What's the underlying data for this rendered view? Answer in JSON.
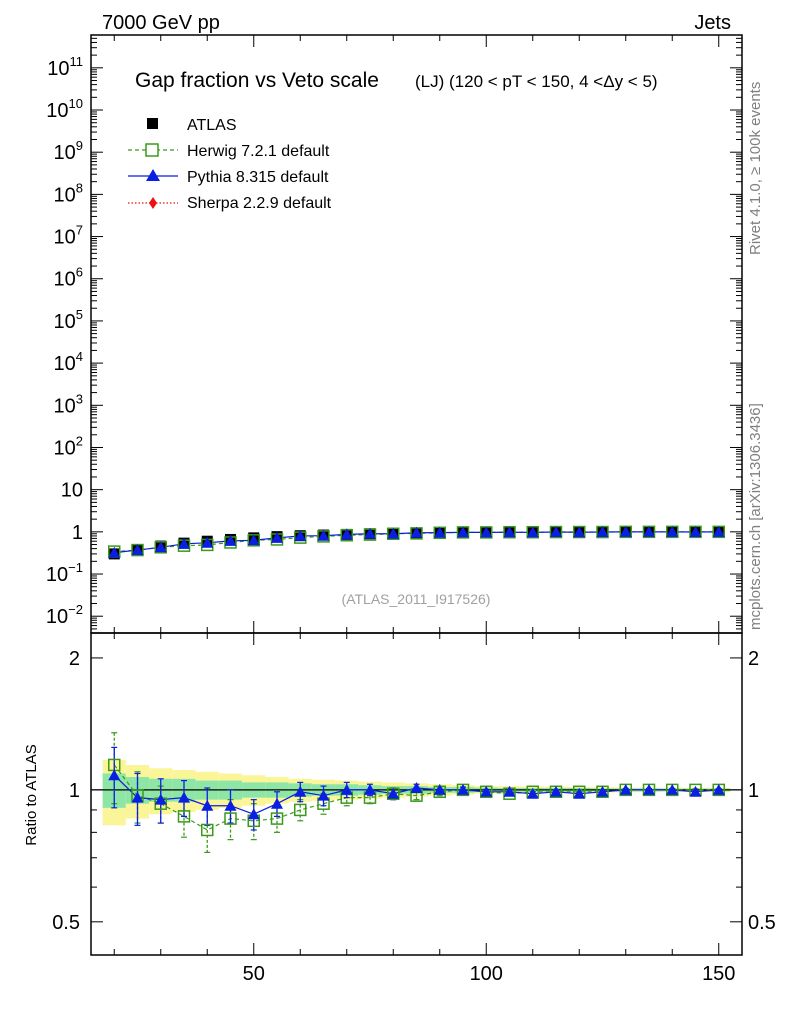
{
  "header": {
    "left": "7000 GeV pp",
    "right": "Jets"
  },
  "side": {
    "rivet": "Rivet 4.1.0, ≥ 100k events",
    "mcplots": "mcplots.cern.ch [arXiv:1306.3436]"
  },
  "colors": {
    "atlas": "#000000",
    "herwig": "#3a9a1a",
    "pythia": "#0b1fe0",
    "sherpa": "#ee1111",
    "band_inner": "#8ee6a6",
    "band_outer": "#fbf59a"
  },
  "chart_data": [
    {
      "type": "scatter",
      "title": "Gap fraction vs Veto scale",
      "subtitle": "(LJ) (120 < pT < 150, 4 <Δy < 5)",
      "ylabel": "",
      "yscale": "log",
      "ylim": [
        0.004,
        600000000000
      ],
      "xlim": [
        15,
        155
      ],
      "yticks": [
        {
          "value": 0.01,
          "base": "10",
          "exp": "−2"
        },
        {
          "value": 0.1,
          "base": "10",
          "exp": "−1"
        },
        {
          "value": 1,
          "base": "1",
          "exp": ""
        },
        {
          "value": 10,
          "base": "10",
          "exp": ""
        },
        {
          "value": 100.0,
          "base": "10",
          "exp": "2"
        },
        {
          "value": 1000.0,
          "base": "10",
          "exp": "3"
        },
        {
          "value": 10000.0,
          "base": "10",
          "exp": "4"
        },
        {
          "value": 100000.0,
          "base": "10",
          "exp": "5"
        },
        {
          "value": 1000000.0,
          "base": "10",
          "exp": "6"
        },
        {
          "value": 10000000.0,
          "base": "10",
          "exp": "7"
        },
        {
          "value": 100000000.0,
          "base": "10",
          "exp": "8"
        },
        {
          "value": 1000000000.0,
          "base": "10",
          "exp": "9"
        },
        {
          "value": 10000000000.0,
          "base": "10",
          "exp": "10"
        },
        {
          "value": 100000000000.0,
          "base": "10",
          "exp": "11"
        }
      ],
      "x": [
        20,
        25,
        30,
        35,
        40,
        45,
        50,
        55,
        60,
        65,
        70,
        75,
        80,
        85,
        90,
        95,
        100,
        105,
        110,
        115,
        120,
        125,
        130,
        135,
        140,
        145,
        150
      ],
      "series": [
        {
          "name": "ATLAS",
          "marker": "square-filled",
          "values": [
            0.3,
            0.38,
            0.46,
            0.54,
            0.6,
            0.66,
            0.72,
            0.77,
            0.81,
            0.84,
            0.87,
            0.9,
            0.92,
            0.94,
            0.96,
            0.97,
            0.98,
            0.99,
            0.99,
            1.0,
            1.0,
            1.0,
            1.0,
            1.0,
            1.0,
            1.0,
            1.0
          ]
        },
        {
          "name": "Herwig 7.2.1 default",
          "marker": "square-open",
          "values": [
            0.34,
            0.37,
            0.43,
            0.47,
            0.49,
            0.56,
            0.63,
            0.66,
            0.73,
            0.78,
            0.83,
            0.86,
            0.9,
            0.92,
            0.95,
            0.97,
            0.97,
            0.98,
            0.98,
            0.99,
            0.99,
            0.99,
            1.0,
            1.0,
            1.0,
            1.0,
            1.0
          ]
        },
        {
          "name": "Pythia 8.315 default",
          "marker": "triangle",
          "values": [
            0.32,
            0.37,
            0.43,
            0.52,
            0.55,
            0.61,
            0.63,
            0.72,
            0.8,
            0.81,
            0.87,
            0.9,
            0.9,
            0.95,
            0.96,
            0.97,
            0.97,
            0.98,
            0.97,
            0.99,
            0.98,
            0.99,
            1.0,
            1.0,
            1.0,
            0.99,
            1.0
          ]
        },
        {
          "name": "Sherpa 2.2.9 default",
          "marker": "diamond",
          "values": []
        }
      ],
      "annotation": "(ATLAS_2011_I917526)"
    },
    {
      "type": "scatter",
      "ylabel": "Ratio to ATLAS",
      "ylim": [
        0.42,
        2.28
      ],
      "xlim": [
        15,
        155
      ],
      "yticks_left": [
        "0.5",
        "1",
        "2"
      ],
      "yticks_right": [
        "0.5",
        "1",
        "2"
      ],
      "ytick_values": [
        0.5,
        1,
        2
      ],
      "xticks": [
        "50",
        "100",
        "150"
      ],
      "xtick_values": [
        50,
        100,
        150
      ],
      "x": [
        20,
        25,
        30,
        35,
        40,
        45,
        50,
        55,
        60,
        65,
        70,
        75,
        80,
        85,
        90,
        95,
        100,
        105,
        110,
        115,
        120,
        125,
        130,
        135,
        140,
        145,
        150
      ],
      "band_inner": [
        0.09,
        0.07,
        0.06,
        0.06,
        0.05,
        0.05,
        0.04,
        0.04,
        0.035,
        0.03,
        0.03,
        0.025,
        0.02,
        0.02,
        0.015,
        0.015,
        0.012,
        0.01,
        0.01,
        0.01,
        0.01,
        0.008,
        0.008,
        0.008,
        0.007,
        0.007,
        0.007
      ],
      "band_outer": [
        0.17,
        0.14,
        0.12,
        0.11,
        0.1,
        0.09,
        0.08,
        0.07,
        0.06,
        0.055,
        0.05,
        0.045,
        0.04,
        0.035,
        0.03,
        0.025,
        0.02,
        0.02,
        0.018,
        0.016,
        0.015,
        0.014,
        0.013,
        0.012,
        0.012,
        0.011,
        0.011
      ],
      "series": [
        {
          "name": "Herwig 7.2.1 default",
          "values": [
            1.14,
            0.97,
            0.93,
            0.87,
            0.81,
            0.86,
            0.85,
            0.86,
            0.9,
            0.93,
            0.96,
            0.96,
            0.98,
            0.97,
            0.99,
            1.0,
            0.99,
            0.98,
            0.99,
            0.99,
            0.99,
            0.99,
            1.0,
            1.0,
            1.0,
            1.0,
            1.0
          ],
          "errors": [
            0.21,
            0.13,
            0.09,
            0.09,
            0.09,
            0.09,
            0.08,
            0.06,
            0.05,
            0.05,
            0.04,
            0.03,
            0.03,
            0.02,
            0.02,
            0.015,
            0.012,
            0.01,
            0.01,
            0.01,
            0.008,
            0.008,
            0.007,
            0.007,
            0.007,
            0.006,
            0.006
          ]
        },
        {
          "name": "Pythia 8.315 default",
          "values": [
            1.08,
            0.96,
            0.95,
            0.96,
            0.92,
            0.92,
            0.88,
            0.93,
            0.99,
            0.97,
            1.0,
            1.0,
            0.98,
            1.01,
            1.0,
            1.0,
            0.99,
            0.99,
            0.98,
            0.99,
            0.98,
            0.99,
            1.0,
            1.0,
            1.0,
            0.99,
            1.0
          ],
          "errors": [
            0.17,
            0.13,
            0.11,
            0.09,
            0.09,
            0.08,
            0.07,
            0.06,
            0.05,
            0.05,
            0.04,
            0.03,
            0.03,
            0.02,
            0.02,
            0.015,
            0.012,
            0.01,
            0.01,
            0.01,
            0.008,
            0.008,
            0.007,
            0.007,
            0.007,
            0.006,
            0.006
          ]
        }
      ]
    }
  ]
}
